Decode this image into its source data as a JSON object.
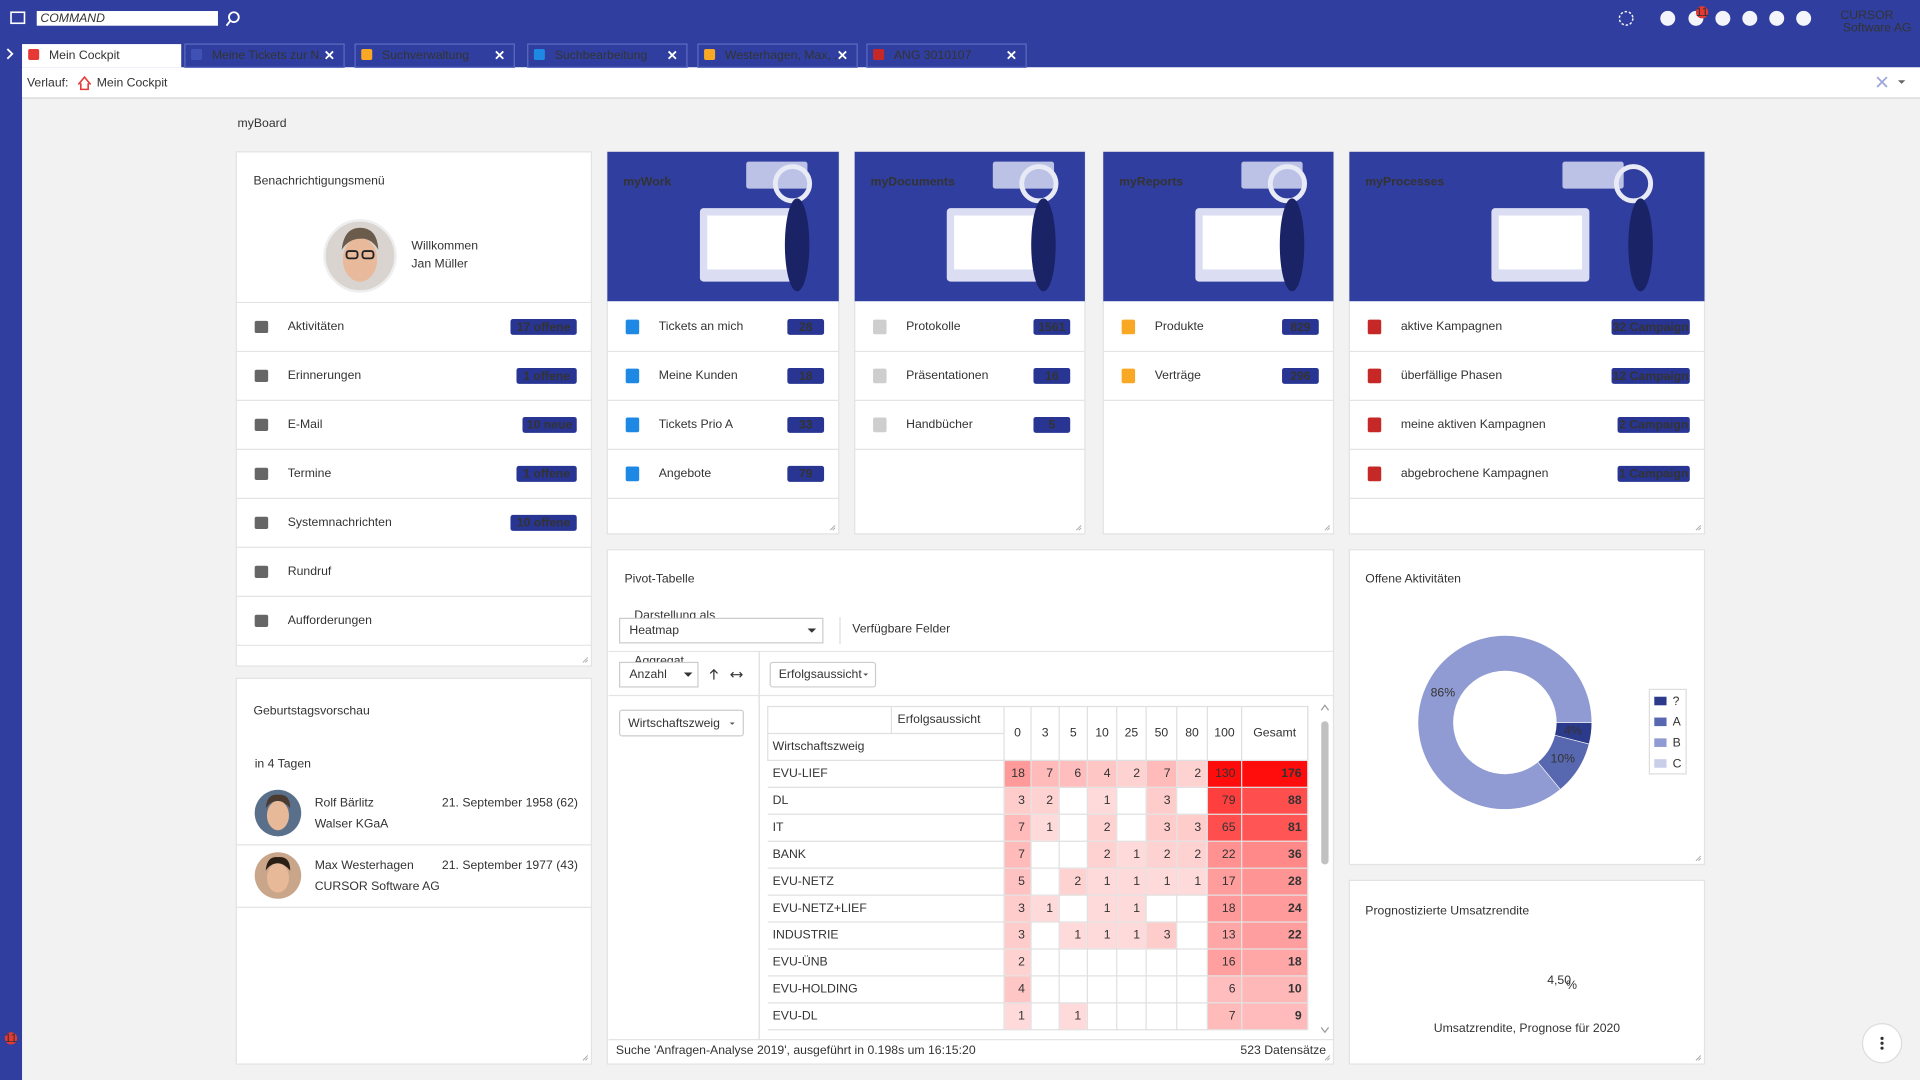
{
  "topbar": {
    "command_placeholder": "COMMAND",
    "notification_count": "11",
    "logo": "CURSOR",
    "logo_subtitle": "Software AG"
  },
  "tabs": [
    "Mein Cockpit",
    "Meine Tickets zur N...",
    "Suchverwaltung",
    "Suchbearbeitung",
    "Westerhagen, Max, ...",
    "ANG 3010107"
  ],
  "history": {
    "label": "Verlauf:",
    "current": "Mein Cockpit"
  },
  "board_title": "myBoard",
  "notifications": {
    "title": "Benachrichtigungsmenü",
    "welcome": "Willkommen",
    "user": "Jan Müller",
    "items": [
      {
        "label": "Aktivitäten",
        "badge": "17 offene"
      },
      {
        "label": "Erinnerungen",
        "badge": "1 offene"
      },
      {
        "label": "E-Mail",
        "badge": "10 neue"
      },
      {
        "label": "Termine",
        "badge": "1 offene"
      },
      {
        "label": "Systemnachrichten",
        "badge": "10 offene"
      },
      {
        "label": "Rundruf"
      },
      {
        "label": "Aufforderungen"
      }
    ]
  },
  "birthdays": {
    "title": "Geburtstagsvorschau",
    "subtitle": "in 4 Tagen",
    "people": [
      {
        "name": "Rolf Bärlitz",
        "company": "Walser KGaA",
        "date": "21. September 1958 (62)"
      },
      {
        "name": "Max Westerhagen",
        "company": "CURSOR Software AG",
        "date": "21. September 1977 (43)"
      }
    ]
  },
  "tiles": [
    {
      "title": "myWork",
      "items": [
        {
          "label": "Tickets an mich",
          "badge": 28
        },
        {
          "label": "Meine Kunden",
          "badge": 18
        },
        {
          "label": "Tickets Prio A",
          "badge": 33
        },
        {
          "label": "Angebote",
          "badge": 79
        }
      ]
    },
    {
      "title": "myDocuments",
      "items": [
        {
          "label": "Protokolle",
          "badge": 1561
        },
        {
          "label": "Präsentationen",
          "badge": 16
        },
        {
          "label": "Handbücher",
          "badge": 5
        }
      ]
    },
    {
      "title": "myReports",
      "items": [
        {
          "label": "Produkte",
          "badge": 829
        },
        {
          "label": "Verträge",
          "badge": 296
        }
      ]
    },
    {
      "title": "myProcesses",
      "items": [
        {
          "label": "aktive Kampagnen",
          "badge": "32 Campaign"
        },
        {
          "label": "überfällige Phasen",
          "badge": "12 Campaign"
        },
        {
          "label": "meine aktiven Kampagnen",
          "badge": "2 Campaign"
        },
        {
          "label": "abgebrochene Kampagnen",
          "badge": "1 Campaign"
        }
      ]
    }
  ],
  "pivot": {
    "title": "Pivot-Tabelle",
    "display_label": "Darstellung als",
    "display_value": "Heatmap",
    "available_fields": "Verfügbare Felder",
    "aggregate_label": "Aggregat",
    "aggregate_value": "Anzahl",
    "column_field": "Erfolgsaussicht",
    "row_field": "Wirtschaftszweig",
    "columns": [
      0,
      3,
      5,
      10,
      25,
      50,
      80,
      100
    ],
    "total_label": "Gesamt",
    "rows": [
      {
        "name": "EVU-LIEF",
        "values": [
          18,
          7,
          6,
          4,
          2,
          7,
          2,
          130
        ],
        "total": 176
      },
      {
        "name": "DL",
        "values": [
          3,
          2,
          null,
          1,
          null,
          3,
          null,
          79
        ],
        "total": 88
      },
      {
        "name": "IT",
        "values": [
          7,
          1,
          null,
          2,
          null,
          3,
          3,
          65
        ],
        "total": 81
      },
      {
        "name": "BANK",
        "values": [
          7,
          null,
          null,
          2,
          1,
          2,
          2,
          22
        ],
        "total": 36
      },
      {
        "name": "EVU-NETZ",
        "values": [
          5,
          null,
          2,
          1,
          1,
          1,
          1,
          17
        ],
        "total": 28
      },
      {
        "name": "EVU-NETZ+LIEF",
        "values": [
          3,
          1,
          null,
          1,
          1,
          null,
          null,
          18
        ],
        "total": 24
      },
      {
        "name": "INDUSTRIE",
        "values": [
          3,
          null,
          1,
          1,
          1,
          3,
          null,
          13
        ],
        "total": 22
      },
      {
        "name": "EVU-ÜNB",
        "values": [
          2,
          null,
          null,
          null,
          null,
          null,
          null,
          16
        ],
        "total": 18
      },
      {
        "name": "EVU-HOLDING",
        "values": [
          4,
          null,
          null,
          null,
          null,
          null,
          null,
          6
        ],
        "total": 10
      },
      {
        "name": "EVU-DL",
        "values": [
          1,
          null,
          1,
          null,
          null,
          null,
          null,
          7
        ],
        "total": 9
      }
    ],
    "footer": "Suche 'Anfragen-Analyse 2019', ausgeführt in 0.198s um 16:15:20",
    "record_count": "523 Datensätze"
  },
  "chart_data": {
    "type": "pie",
    "title": "Offene Aktivitäten",
    "categories": [
      "?",
      "A",
      "B",
      "C"
    ],
    "values": [
      4,
      10,
      86,
      0
    ],
    "value_labels": [
      "4%",
      "10%",
      "86%",
      null
    ],
    "colors": [
      "#2c3a8c",
      "#5868b0",
      "#8f9bd2",
      "#c9cee9"
    ]
  },
  "forecast": {
    "title": "Prognostizierte Umsatzrendite",
    "value": "4,50",
    "unit": "%",
    "caption": "Umsatzrendite, Prognose für 2020"
  },
  "sidebar_badge": "11"
}
